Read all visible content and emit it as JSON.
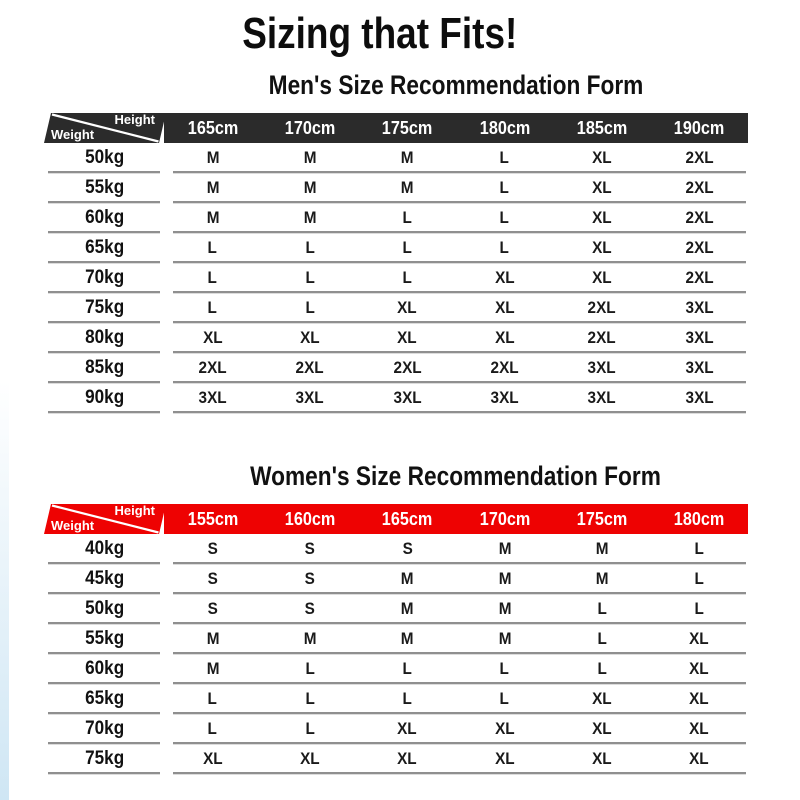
{
  "title": "Sizing that Fits!",
  "corner": {
    "height_label": "Height",
    "weight_label": "Weight"
  },
  "theme": {
    "men_header_bg": "#2b2b2b",
    "women_header_bg": "#ee0202",
    "header_text": "#ffffff",
    "line_color": "#8f8f8f",
    "accent_strip": "#cfe6f4"
  },
  "men_table": {
    "title": "Men's Size Recommendation Form",
    "heights": [
      "165cm",
      "170cm",
      "175cm",
      "180cm",
      "185cm",
      "190cm"
    ],
    "rows": [
      {
        "weight": "50kg",
        "sizes": [
          "M",
          "M",
          "M",
          "L",
          "XL",
          "2XL"
        ]
      },
      {
        "weight": "55kg",
        "sizes": [
          "M",
          "M",
          "M",
          "L",
          "XL",
          "2XL"
        ]
      },
      {
        "weight": "60kg",
        "sizes": [
          "M",
          "M",
          "L",
          "L",
          "XL",
          "2XL"
        ]
      },
      {
        "weight": "65kg",
        "sizes": [
          "L",
          "L",
          "L",
          "L",
          "XL",
          "2XL"
        ]
      },
      {
        "weight": "70kg",
        "sizes": [
          "L",
          "L",
          "L",
          "XL",
          "XL",
          "2XL"
        ]
      },
      {
        "weight": "75kg",
        "sizes": [
          "L",
          "L",
          "XL",
          "XL",
          "2XL",
          "3XL"
        ]
      },
      {
        "weight": "80kg",
        "sizes": [
          "XL",
          "XL",
          "XL",
          "XL",
          "2XL",
          "3XL"
        ]
      },
      {
        "weight": "85kg",
        "sizes": [
          "2XL",
          "2XL",
          "2XL",
          "2XL",
          "3XL",
          "3XL"
        ]
      },
      {
        "weight": "90kg",
        "sizes": [
          "3XL",
          "3XL",
          "3XL",
          "3XL",
          "3XL",
          "3XL"
        ]
      }
    ]
  },
  "women_table": {
    "title": "Women's Size Recommendation Form",
    "heights": [
      "155cm",
      "160cm",
      "165cm",
      "170cm",
      "175cm",
      "180cm"
    ],
    "rows": [
      {
        "weight": "40kg",
        "sizes": [
          "S",
          "S",
          "S",
          "M",
          "M",
          "L"
        ]
      },
      {
        "weight": "45kg",
        "sizes": [
          "S",
          "S",
          "M",
          "M",
          "M",
          "L"
        ]
      },
      {
        "weight": "50kg",
        "sizes": [
          "S",
          "S",
          "M",
          "M",
          "L",
          "L"
        ]
      },
      {
        "weight": "55kg",
        "sizes": [
          "M",
          "M",
          "M",
          "M",
          "L",
          "XL"
        ]
      },
      {
        "weight": "60kg",
        "sizes": [
          "M",
          "L",
          "L",
          "L",
          "L",
          "XL"
        ]
      },
      {
        "weight": "65kg",
        "sizes": [
          "L",
          "L",
          "L",
          "L",
          "XL",
          "XL"
        ]
      },
      {
        "weight": "70kg",
        "sizes": [
          "L",
          "L",
          "XL",
          "XL",
          "XL",
          "XL"
        ]
      },
      {
        "weight": "75kg",
        "sizes": [
          "XL",
          "XL",
          "XL",
          "XL",
          "XL",
          "XL"
        ]
      }
    ]
  }
}
